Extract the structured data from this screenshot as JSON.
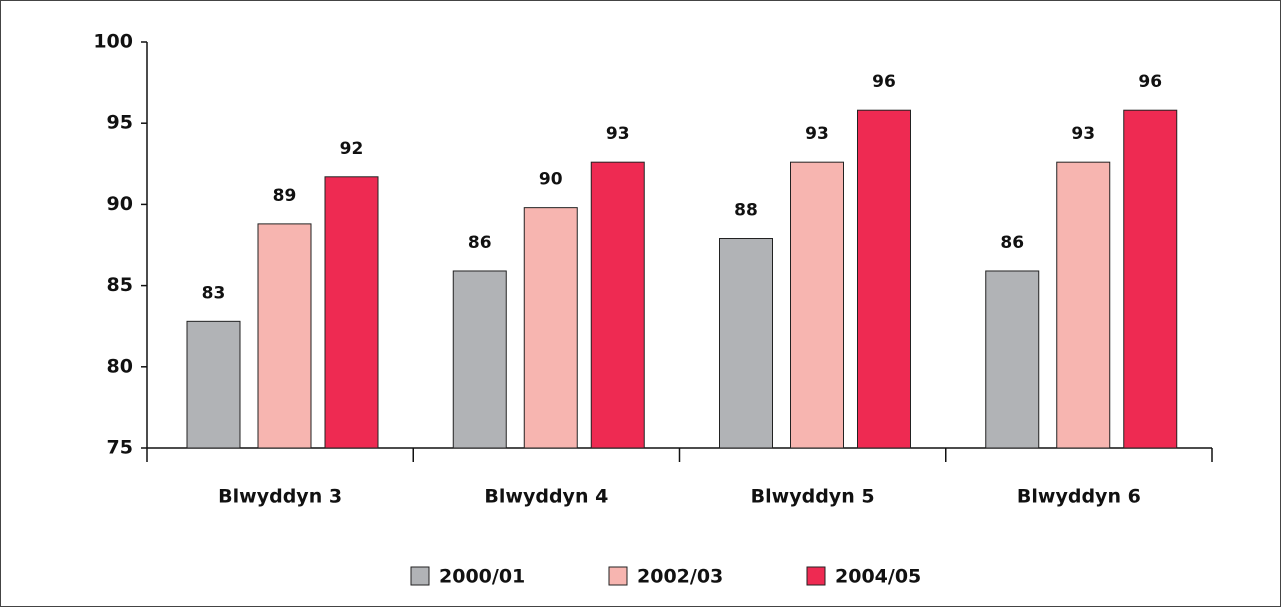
{
  "chart_data": {
    "type": "bar",
    "categories": [
      "Blwyddyn 3",
      "Blwyddyn 4",
      "Blwyddyn 5",
      "Blwyddyn 6"
    ],
    "series": [
      {
        "name": "2000/01",
        "color": "#b1b3b6",
        "values": [
          82.8,
          85.9,
          87.9,
          85.9
        ],
        "value_labels": [
          "83",
          "86",
          "88",
          "86"
        ]
      },
      {
        "name": "2002/03",
        "color": "#f7b5b0",
        "values": [
          88.8,
          89.8,
          92.6,
          92.6
        ],
        "value_labels": [
          "89",
          "90",
          "93",
          "93"
        ]
      },
      {
        "name": "2004/05",
        "color": "#ee2a52",
        "values": [
          91.7,
          92.6,
          95.8,
          95.8
        ],
        "value_labels": [
          "92",
          "93",
          "96",
          "96"
        ]
      }
    ],
    "ylim": [
      75,
      100
    ],
    "yticks": [
      75,
      80,
      85,
      90,
      95,
      100
    ],
    "legend": "bottom"
  }
}
